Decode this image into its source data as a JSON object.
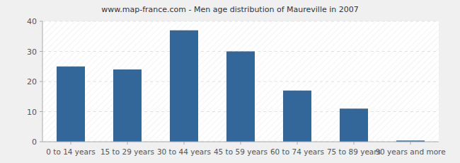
{
  "chart_data": {
    "type": "bar",
    "title": "www.map-france.com - Men age distribution of Maureville in 2007",
    "categories": [
      "0 to 14 years",
      "15 to 29 years",
      "30 to 44 years",
      "45 to 59 years",
      "60 to 74 years",
      "75 to 89 years",
      "90 years and more"
    ],
    "values": [
      25,
      24,
      37,
      30,
      17,
      11,
      0.4
    ],
    "color": "#336699",
    "ylim": [
      0,
      40
    ],
    "yticks": [
      0,
      10,
      20,
      30,
      40
    ],
    "grid": true
  }
}
